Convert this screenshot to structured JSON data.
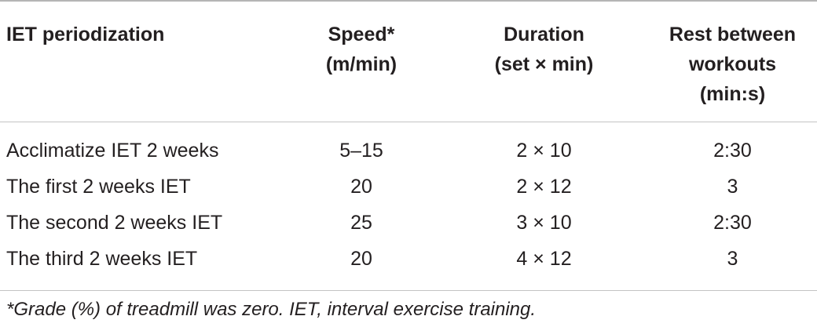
{
  "table": {
    "headers": [
      [
        "IET periodization"
      ],
      [
        "Speed*",
        "(m/min)"
      ],
      [
        "Duration",
        "(set × min)"
      ],
      [
        "Rest between",
        "workouts",
        "(min:s)"
      ]
    ],
    "rows": [
      [
        "Acclimatize IET 2 weeks",
        "5–15",
        "2 × 10",
        "2:30"
      ],
      [
        "The first 2 weeks IET",
        "20",
        "2 × 12",
        "3"
      ],
      [
        "The second 2 weeks IET",
        "25",
        "3 × 10",
        "2:30"
      ],
      [
        "The third 2 weeks IET",
        "20",
        "4 × 12",
        "3"
      ]
    ]
  },
  "footnote": "*Grade (%) of treadmill was zero. IET, interval exercise training."
}
